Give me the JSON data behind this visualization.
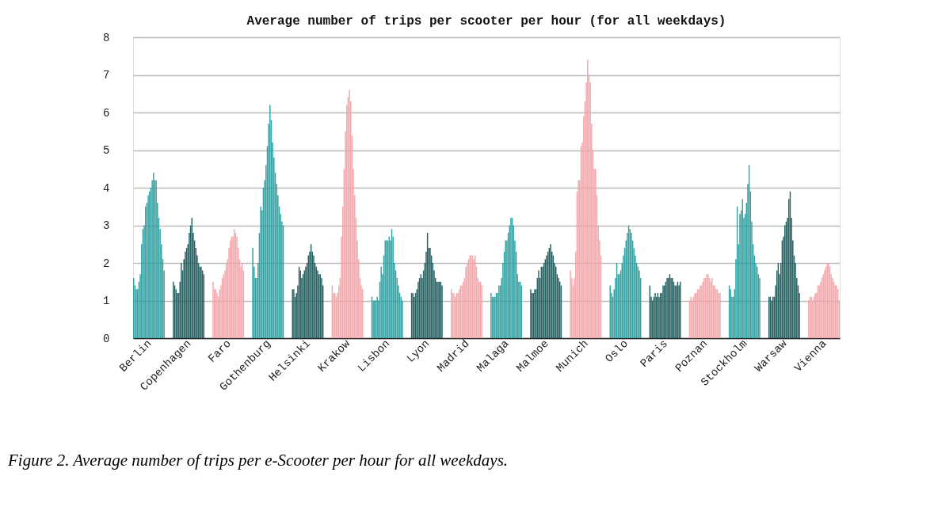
{
  "chart_data": {
    "type": "bar",
    "title": "Average number of trips per scooter per hour (for all weekdays)",
    "categories": [
      null,
      null,
      null,
      null,
      null,
      null,
      null,
      null,
      null,
      null,
      null,
      null,
      "Berlin",
      null,
      null,
      null,
      null,
      null,
      null,
      null,
      null,
      null,
      null,
      null,
      null,
      null,
      null,
      null,
      null,
      null,
      null,
      null,
      null,
      null,
      null,
      null,
      null,
      null,
      null,
      null,
      null,
      null,
      "Copenhagen",
      null,
      null,
      null,
      null,
      null,
      null,
      null,
      null,
      null,
      null,
      null,
      null,
      null,
      null,
      null,
      null,
      null,
      null,
      null,
      null,
      null,
      null,
      null,
      null,
      null,
      null,
      null,
      null,
      null,
      "Faro",
      null,
      null,
      null,
      null,
      null,
      null,
      null,
      null,
      null,
      null,
      null,
      null,
      null,
      null,
      null,
      null,
      null,
      null,
      null,
      null,
      null,
      null,
      null,
      null,
      null,
      null,
      null,
      null,
      null,
      "Gothenburg",
      null,
      null,
      null,
      null,
      null,
      null,
      null,
      null,
      null,
      null,
      null,
      null,
      null,
      null,
      null,
      null,
      null,
      null,
      null,
      null,
      null,
      null,
      null,
      null,
      null,
      null,
      null,
      null,
      null,
      "Helsinki",
      null,
      null,
      null,
      null,
      null,
      null,
      null,
      null,
      null,
      null,
      null,
      null,
      null,
      null,
      null,
      null,
      null,
      null,
      null,
      null,
      null,
      null,
      null,
      null,
      null,
      null,
      null,
      null,
      null,
      "Krakow",
      null,
      null,
      null,
      null,
      null,
      null,
      null,
      null,
      null,
      null,
      null,
      null,
      null,
      null,
      null,
      null,
      null,
      null,
      null,
      null,
      null,
      null,
      null,
      null,
      null,
      null,
      null,
      null,
      null,
      "Lisbon",
      null,
      null,
      null,
      null,
      null,
      null,
      null,
      null,
      null,
      null,
      null,
      null,
      null,
      null,
      null,
      null,
      null,
      null,
      null,
      null,
      null,
      null,
      null,
      null,
      null,
      null,
      null,
      null,
      null,
      "Lyon",
      null,
      null,
      null,
      null,
      null,
      null,
      null,
      null,
      null,
      null,
      null,
      null,
      null,
      null,
      null,
      null,
      null,
      null,
      null,
      null,
      null,
      null,
      null,
      null,
      null,
      null,
      null,
      null,
      null,
      "Madrid",
      null,
      null,
      null,
      null,
      null,
      null,
      null,
      null,
      null,
      null,
      null,
      null,
      null,
      null,
      null,
      null,
      null,
      null,
      null,
      null,
      null,
      null,
      null,
      null,
      null,
      null,
      null,
      null,
      null,
      "Malaga",
      null,
      null,
      null,
      null,
      null,
      null,
      null,
      null,
      null,
      null,
      null,
      null,
      null,
      null,
      null,
      null,
      null,
      null,
      null,
      null,
      null,
      null,
      null,
      null,
      null,
      null,
      null,
      null,
      null,
      "Malmoe",
      null,
      null,
      null,
      null,
      null,
      null,
      null,
      null,
      null,
      null,
      null,
      null,
      null,
      null,
      null,
      null,
      null,
      null,
      null,
      null,
      null,
      null,
      null,
      null,
      null,
      null,
      null,
      null,
      null,
      "Munich",
      null,
      null,
      null,
      null,
      null,
      null,
      null,
      null,
      null,
      null,
      null,
      null,
      null,
      null,
      null,
      null,
      null,
      null,
      null,
      null,
      null,
      null,
      null,
      null,
      null,
      null,
      null,
      null,
      null,
      "Oslo",
      null,
      null,
      null,
      null,
      null,
      null,
      null,
      null,
      null,
      null,
      null,
      null,
      null,
      null,
      null,
      null,
      null,
      null,
      null,
      null,
      null,
      null,
      null,
      null,
      null,
      null,
      null,
      null,
      null,
      "Paris",
      null,
      null,
      null,
      null,
      null,
      null,
      null,
      null,
      null,
      null,
      null,
      null,
      null,
      null,
      null,
      null,
      null,
      null,
      null,
      null,
      null,
      null,
      null,
      null,
      null,
      null,
      null,
      null,
      null,
      "Poznan",
      null,
      null,
      null,
      null,
      null,
      null,
      null,
      null,
      null,
      null,
      null,
      null,
      null,
      null,
      null,
      null,
      null,
      null,
      null,
      null,
      null,
      null,
      null,
      null,
      null,
      null,
      null,
      null,
      null,
      "Stockholm",
      null,
      null,
      null,
      null,
      null,
      null,
      null,
      null,
      null,
      null,
      null,
      null,
      null,
      null,
      null,
      null,
      null,
      null,
      null,
      null,
      null,
      null,
      null,
      null,
      null,
      null,
      null,
      null,
      null,
      "Warsaw",
      null,
      null,
      null,
      null,
      null,
      null,
      null,
      null,
      null,
      null,
      null,
      null,
      null,
      null,
      null,
      null,
      null,
      null,
      null,
      null,
      null,
      null,
      null,
      null,
      null,
      null,
      null,
      null,
      null,
      "Vienna",
      null,
      null,
      null,
      null,
      null,
      null,
      null,
      null,
      null,
      null,
      null
    ],
    "values": [
      1.6,
      1.4,
      1.3,
      1.3,
      1.5,
      1.7,
      2.5,
      2.9,
      3.0,
      3.5,
      3.6,
      3.8,
      3.9,
      4.0,
      4.2,
      4.4,
      4.2,
      4.2,
      3.6,
      3.2,
      2.9,
      2.5,
      2.1,
      1.8,
      null,
      null,
      null,
      null,
      null,
      null,
      1.5,
      1.4,
      1.3,
      1.2,
      1.2,
      1.5,
      2.0,
      1.8,
      2.1,
      2.3,
      2.4,
      2.5,
      2.8,
      3.0,
      3.2,
      2.8,
      2.6,
      2.4,
      2.2,
      2.0,
      1.9,
      1.9,
      1.8,
      1.7,
      null,
      null,
      null,
      null,
      null,
      null,
      1.5,
      1.3,
      1.3,
      1.2,
      1.1,
      1.3,
      1.4,
      1.6,
      1.7,
      1.8,
      2.0,
      2.1,
      2.4,
      2.6,
      2.7,
      2.7,
      2.9,
      2.8,
      2.7,
      2.4,
      2.1,
      1.9,
      2.0,
      1.8,
      null,
      null,
      null,
      null,
      null,
      null,
      2.4,
      1.9,
      1.6,
      1.6,
      2.0,
      2.8,
      3.5,
      3.4,
      4.0,
      4.2,
      4.6,
      5.1,
      5.7,
      6.2,
      5.8,
      5.2,
      4.8,
      4.4,
      4.1,
      3.8,
      3.5,
      3.3,
      3.1,
      3.0,
      null,
      null,
      null,
      null,
      null,
      null,
      1.3,
      1.3,
      1.1,
      1.2,
      1.4,
      1.9,
      1.8,
      1.6,
      1.7,
      1.8,
      1.9,
      2.0,
      2.2,
      2.3,
      2.5,
      2.3,
      2.2,
      2.0,
      1.9,
      1.8,
      1.7,
      1.7,
      1.6,
      1.4,
      null,
      null,
      null,
      null,
      null,
      null,
      1.4,
      1.2,
      1.2,
      1.1,
      1.2,
      1.4,
      1.6,
      2.7,
      3.5,
      4.5,
      5.5,
      6.2,
      6.4,
      6.6,
      6.3,
      5.4,
      4.5,
      3.8,
      3.2,
      2.6,
      2.1,
      1.6,
      1.4,
      1.3,
      null,
      null,
      null,
      null,
      null,
      null,
      1.1,
      1.0,
      1.0,
      1.0,
      1.1,
      1.0,
      1.5,
      1.9,
      1.7,
      2.2,
      2.6,
      2.6,
      2.6,
      2.7,
      2.6,
      2.9,
      2.7,
      2.0,
      1.8,
      1.6,
      1.4,
      1.2,
      1.1,
      1.0,
      null,
      null,
      null,
      null,
      null,
      null,
      1.2,
      1.2,
      1.1,
      1.2,
      1.3,
      1.5,
      1.6,
      1.7,
      1.6,
      1.8,
      2.0,
      2.3,
      2.8,
      2.4,
      2.4,
      2.2,
      2.0,
      1.8,
      1.6,
      1.5,
      1.5,
      1.5,
      1.5,
      1.4,
      null,
      null,
      null,
      null,
      null,
      null,
      1.3,
      1.2,
      1.2,
      1.1,
      1.2,
      1.2,
      1.3,
      1.4,
      1.4,
      1.5,
      1.6,
      1.9,
      2.0,
      2.1,
      2.2,
      2.2,
      2.2,
      2.1,
      2.2,
      1.9,
      1.6,
      1.5,
      1.5,
      1.4,
      null,
      null,
      null,
      null,
      null,
      null,
      1.2,
      1.1,
      1.1,
      1.1,
      1.2,
      1.2,
      1.4,
      1.4,
      1.6,
      2.0,
      2.3,
      2.6,
      2.6,
      2.8,
      3.0,
      3.2,
      3.2,
      3.0,
      2.6,
      2.3,
      1.7,
      1.5,
      1.5,
      1.4,
      null,
      null,
      null,
      null,
      null,
      null,
      1.3,
      1.2,
      1.2,
      1.3,
      1.3,
      1.6,
      1.8,
      1.6,
      1.9,
      1.9,
      2.0,
      2.1,
      2.2,
      2.3,
      2.4,
      2.5,
      2.3,
      2.2,
      2.0,
      1.9,
      1.7,
      1.6,
      1.5,
      1.4,
      null,
      null,
      null,
      null,
      null,
      null,
      1.8,
      1.6,
      1.4,
      1.6,
      2.3,
      3.9,
      4.2,
      4.2,
      5.1,
      5.2,
      5.9,
      6.3,
      6.8,
      7.4,
      7.0,
      6.8,
      5.7,
      5.0,
      4.5,
      4.5,
      3.8,
      3.0,
      2.6,
      2.2,
      null,
      null,
      null,
      null,
      null,
      null,
      1.4,
      1.2,
      1.1,
      1.3,
      1.6,
      2.0,
      1.7,
      1.7,
      1.8,
      2.0,
      2.2,
      2.4,
      2.6,
      2.8,
      3.0,
      2.9,
      2.8,
      2.6,
      2.4,
      2.2,
      2.0,
      1.9,
      1.8,
      1.6,
      null,
      null,
      null,
      null,
      null,
      null,
      1.4,
      1.1,
      1.0,
      1.1,
      1.2,
      1.1,
      1.2,
      1.1,
      1.2,
      1.2,
      1.4,
      1.4,
      1.5,
      1.6,
      1.6,
      1.7,
      1.6,
      1.6,
      1.5,
      1.4,
      1.4,
      1.5,
      1.4,
      1.5,
      null,
      null,
      null,
      null,
      null,
      null,
      1.0,
      1.1,
      1.0,
      1.1,
      1.2,
      1.2,
      1.3,
      1.3,
      1.4,
      1.4,
      1.5,
      1.6,
      1.6,
      1.7,
      1.7,
      1.6,
      1.5,
      1.6,
      1.4,
      1.4,
      1.3,
      1.3,
      1.2,
      1.2,
      null,
      null,
      null,
      null,
      null,
      null,
      1.4,
      1.3,
      1.1,
      1.1,
      1.3,
      2.1,
      3.5,
      2.5,
      3.3,
      3.4,
      3.7,
      3.2,
      3.3,
      3.6,
      4.1,
      4.6,
      3.9,
      3.1,
      2.5,
      2.2,
      2.0,
      1.9,
      1.7,
      1.6,
      null,
      null,
      null,
      null,
      null,
      null,
      1.1,
      1.1,
      1.0,
      1.1,
      1.1,
      1.4,
      1.8,
      2.0,
      1.7,
      2.0,
      2.6,
      2.7,
      3.0,
      3.1,
      3.2,
      3.7,
      3.9,
      3.2,
      2.6,
      2.2,
      2.0,
      1.6,
      1.4,
      1.2,
      null,
      null,
      null,
      null,
      null,
      null,
      1.0,
      1.1,
      1.1,
      1.0,
      1.1,
      1.2,
      1.2,
      1.4,
      1.4,
      1.5,
      1.6,
      1.7,
      1.8,
      1.9,
      2.0,
      2.0,
      1.9,
      1.7,
      1.6,
      1.5,
      1.4,
      1.4,
      1.3,
      1.0
    ],
    "colors": [
      "#2a9d9f",
      "#2a9d9f",
      "#2a9d9f",
      "#2a9d9f",
      "#2a9d9f",
      "#2a9d9f",
      "#2a9d9f",
      "#2a9d9f",
      "#2a9d9f",
      "#2a9d9f",
      "#2a9d9f",
      "#2a9d9f",
      "#2a9d9f",
      "#2a9d9f",
      "#2a9d9f",
      "#2a9d9f",
      "#2a9d9f",
      "#2a9d9f",
      "#2a9d9f",
      "#2a9d9f",
      "#2a9d9f",
      "#2a9d9f",
      "#2a9d9f",
      "#2a9d9f",
      null,
      null,
      null,
      null,
      null,
      null,
      "#1e5a5b",
      "#1e5a5b",
      "#1e5a5b",
      "#1e5a5b",
      "#1e5a5b",
      "#1e5a5b",
      "#1e5a5b",
      "#1e5a5b",
      "#1e5a5b",
      "#1e5a5b",
      "#1e5a5b",
      "#1e5a5b",
      "#1e5a5b",
      "#1e5a5b",
      "#1e5a5b",
      "#1e5a5b",
      "#1e5a5b",
      "#1e5a5b",
      "#1e5a5b",
      "#1e5a5b",
      "#1e5a5b",
      "#1e5a5b",
      "#1e5a5b",
      "#1e5a5b",
      null,
      null,
      null,
      null,
      null,
      null,
      "#f2a3a8",
      "#f2a3a8",
      "#f2a3a8",
      "#f2a3a8",
      "#f2a3a8",
      "#f2a3a8",
      "#f2a3a8",
      "#f2a3a8",
      "#f2a3a8",
      "#f2a3a8",
      "#f2a3a8",
      "#f2a3a8",
      "#f2a3a8",
      "#f2a3a8",
      "#f2a3a8",
      "#f2a3a8",
      "#f2a3a8",
      "#f2a3a8",
      "#f2a3a8",
      "#f2a3a8",
      "#f2a3a8",
      "#f2a3a8",
      "#f2a3a8",
      "#f2a3a8",
      null,
      null,
      null,
      null,
      null,
      null,
      "#2a9d9f",
      "#2a9d9f",
      "#2a9d9f",
      "#2a9d9f",
      "#2a9d9f",
      "#2a9d9f",
      "#2a9d9f",
      "#2a9d9f",
      "#2a9d9f",
      "#2a9d9f",
      "#2a9d9f",
      "#2a9d9f",
      "#2a9d9f",
      "#2a9d9f",
      "#2a9d9f",
      "#2a9d9f",
      "#2a9d9f",
      "#2a9d9f",
      "#2a9d9f",
      "#2a9d9f",
      "#2a9d9f",
      "#2a9d9f",
      "#2a9d9f",
      "#2a9d9f",
      null,
      null,
      null,
      null,
      null,
      null,
      "#1e5a5b",
      "#1e5a5b",
      "#1e5a5b",
      "#1e5a5b",
      "#1e5a5b",
      "#1e5a5b",
      "#1e5a5b",
      "#1e5a5b",
      "#1e5a5b",
      "#1e5a5b",
      "#1e5a5b",
      "#1e5a5b",
      "#1e5a5b",
      "#1e5a5b",
      "#1e5a5b",
      "#1e5a5b",
      "#1e5a5b",
      "#1e5a5b",
      "#1e5a5b",
      "#1e5a5b",
      "#1e5a5b",
      "#1e5a5b",
      "#1e5a5b",
      "#1e5a5b",
      null,
      null,
      null,
      null,
      null,
      null,
      "#f2a3a8",
      "#f2a3a8",
      "#f2a3a8",
      "#f2a3a8",
      "#f2a3a8",
      "#f2a3a8",
      "#f2a3a8",
      "#f2a3a8",
      "#f2a3a8",
      "#f2a3a8",
      "#f2a3a8",
      "#f2a3a8",
      "#f2a3a8",
      "#f2a3a8",
      "#f2a3a8",
      "#f2a3a8",
      "#f2a3a8",
      "#f2a3a8",
      "#f2a3a8",
      "#f2a3a8",
      "#f2a3a8",
      "#f2a3a8",
      "#f2a3a8",
      "#f2a3a8",
      null,
      null,
      null,
      null,
      null,
      null,
      "#2a9d9f",
      "#2a9d9f",
      "#2a9d9f",
      "#2a9d9f",
      "#2a9d9f",
      "#2a9d9f",
      "#2a9d9f",
      "#2a9d9f",
      "#2a9d9f",
      "#2a9d9f",
      "#2a9d9f",
      "#2a9d9f",
      "#2a9d9f",
      "#2a9d9f",
      "#2a9d9f",
      "#2a9d9f",
      "#2a9d9f",
      "#2a9d9f",
      "#2a9d9f",
      "#2a9d9f",
      "#2a9d9f",
      "#2a9d9f",
      "#2a9d9f",
      "#2a9d9f",
      null,
      null,
      null,
      null,
      null,
      null,
      "#1e5a5b",
      "#1e5a5b",
      "#1e5a5b",
      "#1e5a5b",
      "#1e5a5b",
      "#1e5a5b",
      "#1e5a5b",
      "#1e5a5b",
      "#1e5a5b",
      "#1e5a5b",
      "#1e5a5b",
      "#1e5a5b",
      "#1e5a5b",
      "#1e5a5b",
      "#1e5a5b",
      "#1e5a5b",
      "#1e5a5b",
      "#1e5a5b",
      "#1e5a5b",
      "#1e5a5b",
      "#1e5a5b",
      "#1e5a5b",
      "#1e5a5b",
      "#1e5a5b",
      null,
      null,
      null,
      null,
      null,
      null,
      "#f2a3a8",
      "#f2a3a8",
      "#f2a3a8",
      "#f2a3a8",
      "#f2a3a8",
      "#f2a3a8",
      "#f2a3a8",
      "#f2a3a8",
      "#f2a3a8",
      "#f2a3a8",
      "#f2a3a8",
      "#f2a3a8",
      "#f2a3a8",
      "#f2a3a8",
      "#f2a3a8",
      "#f2a3a8",
      "#f2a3a8",
      "#f2a3a8",
      "#f2a3a8",
      "#f2a3a8",
      "#f2a3a8",
      "#f2a3a8",
      "#f2a3a8",
      "#f2a3a8",
      null,
      null,
      null,
      null,
      null,
      null,
      "#2a9d9f",
      "#2a9d9f",
      "#2a9d9f",
      "#2a9d9f",
      "#2a9d9f",
      "#2a9d9f",
      "#2a9d9f",
      "#2a9d9f",
      "#2a9d9f",
      "#2a9d9f",
      "#2a9d9f",
      "#2a9d9f",
      "#2a9d9f",
      "#2a9d9f",
      "#2a9d9f",
      "#2a9d9f",
      "#2a9d9f",
      "#2a9d9f",
      "#2a9d9f",
      "#2a9d9f",
      "#2a9d9f",
      "#2a9d9f",
      "#2a9d9f",
      "#2a9d9f",
      null,
      null,
      null,
      null,
      null,
      null,
      "#1e5a5b",
      "#1e5a5b",
      "#1e5a5b",
      "#1e5a5b",
      "#1e5a5b",
      "#1e5a5b",
      "#1e5a5b",
      "#1e5a5b",
      "#1e5a5b",
      "#1e5a5b",
      "#1e5a5b",
      "#1e5a5b",
      "#1e5a5b",
      "#1e5a5b",
      "#1e5a5b",
      "#1e5a5b",
      "#1e5a5b",
      "#1e5a5b",
      "#1e5a5b",
      "#1e5a5b",
      "#1e5a5b",
      "#1e5a5b",
      "#1e5a5b",
      "#1e5a5b",
      null,
      null,
      null,
      null,
      null,
      null,
      "#f2a3a8",
      "#f2a3a8",
      "#f2a3a8",
      "#f2a3a8",
      "#f2a3a8",
      "#f2a3a8",
      "#f2a3a8",
      "#f2a3a8",
      "#f2a3a8",
      "#f2a3a8",
      "#f2a3a8",
      "#f2a3a8",
      "#f2a3a8",
      "#f2a3a8",
      "#f2a3a8",
      "#f2a3a8",
      "#f2a3a8",
      "#f2a3a8",
      "#f2a3a8",
      "#f2a3a8",
      "#f2a3a8",
      "#f2a3a8",
      "#f2a3a8",
      "#f2a3a8",
      null,
      null,
      null,
      null,
      null,
      null,
      "#2a9d9f",
      "#2a9d9f",
      "#2a9d9f",
      "#2a9d9f",
      "#2a9d9f",
      "#2a9d9f",
      "#2a9d9f",
      "#2a9d9f",
      "#2a9d9f",
      "#2a9d9f",
      "#2a9d9f",
      "#2a9d9f",
      "#2a9d9f",
      "#2a9d9f",
      "#2a9d9f",
      "#2a9d9f",
      "#2a9d9f",
      "#2a9d9f",
      "#2a9d9f",
      "#2a9d9f",
      "#2a9d9f",
      "#2a9d9f",
      "#2a9d9f",
      "#2a9d9f",
      null,
      null,
      null,
      null,
      null,
      null,
      "#1e5a5b",
      "#1e5a5b",
      "#1e5a5b",
      "#1e5a5b",
      "#1e5a5b",
      "#1e5a5b",
      "#1e5a5b",
      "#1e5a5b",
      "#1e5a5b",
      "#1e5a5b",
      "#1e5a5b",
      "#1e5a5b",
      "#1e5a5b",
      "#1e5a5b",
      "#1e5a5b",
      "#1e5a5b",
      "#1e5a5b",
      "#1e5a5b",
      "#1e5a5b",
      "#1e5a5b",
      "#1e5a5b",
      "#1e5a5b",
      "#1e5a5b",
      "#1e5a5b",
      null,
      null,
      null,
      null,
      null,
      null,
      "#f2a3a8",
      "#f2a3a8",
      "#f2a3a8",
      "#f2a3a8",
      "#f2a3a8",
      "#f2a3a8",
      "#f2a3a8",
      "#f2a3a8",
      "#f2a3a8",
      "#f2a3a8",
      "#f2a3a8",
      "#f2a3a8",
      "#f2a3a8",
      "#f2a3a8",
      "#f2a3a8",
      "#f2a3a8",
      "#f2a3a8",
      "#f2a3a8",
      "#f2a3a8",
      "#f2a3a8",
      "#f2a3a8",
      "#f2a3a8",
      "#f2a3a8",
      "#f2a3a8",
      null,
      null,
      null,
      null,
      null,
      null,
      "#2a9d9f",
      "#2a9d9f",
      "#2a9d9f",
      "#2a9d9f",
      "#2a9d9f",
      "#2a9d9f",
      "#2a9d9f",
      "#2a9d9f",
      "#2a9d9f",
      "#2a9d9f",
      "#2a9d9f",
      "#2a9d9f",
      "#2a9d9f",
      "#2a9d9f",
      "#2a9d9f",
      "#2a9d9f",
      "#2a9d9f",
      "#2a9d9f",
      "#2a9d9f",
      "#2a9d9f",
      "#2a9d9f",
      "#2a9d9f",
      "#2a9d9f",
      "#2a9d9f",
      null,
      null,
      null,
      null,
      null,
      null,
      "#1e5a5b",
      "#1e5a5b",
      "#1e5a5b",
      "#1e5a5b",
      "#1e5a5b",
      "#1e5a5b",
      "#1e5a5b",
      "#1e5a5b",
      "#1e5a5b",
      "#1e5a5b",
      "#1e5a5b",
      "#1e5a5b",
      "#1e5a5b",
      "#1e5a5b",
      "#1e5a5b",
      "#1e5a5b",
      "#1e5a5b",
      "#1e5a5b",
      "#1e5a5b",
      "#1e5a5b",
      "#1e5a5b",
      "#1e5a5b",
      "#1e5a5b",
      "#1e5a5b",
      null,
      null,
      null,
      null,
      null,
      null,
      "#f2a3a8",
      "#f2a3a8",
      "#f2a3a8",
      "#f2a3a8",
      "#f2a3a8",
      "#f2a3a8",
      "#f2a3a8",
      "#f2a3a8",
      "#f2a3a8",
      "#f2a3a8",
      "#f2a3a8",
      "#f2a3a8",
      "#f2a3a8",
      "#f2a3a8",
      "#f2a3a8",
      "#f2a3a8",
      "#f2a3a8",
      "#f2a3a8",
      "#f2a3a8",
      "#f2a3a8",
      "#f2a3a8",
      "#f2a3a8",
      "#f2a3a8",
      "#f2a3a8"
    ],
    "ylim": [
      0,
      8
    ],
    "yticks": [
      0,
      1,
      2,
      3,
      4,
      5,
      6,
      7,
      8
    ],
    "grid": "y",
    "annotations": [
      "Figure 2. Average number of trips per e-Scooter per hour for all weekdays."
    ]
  }
}
